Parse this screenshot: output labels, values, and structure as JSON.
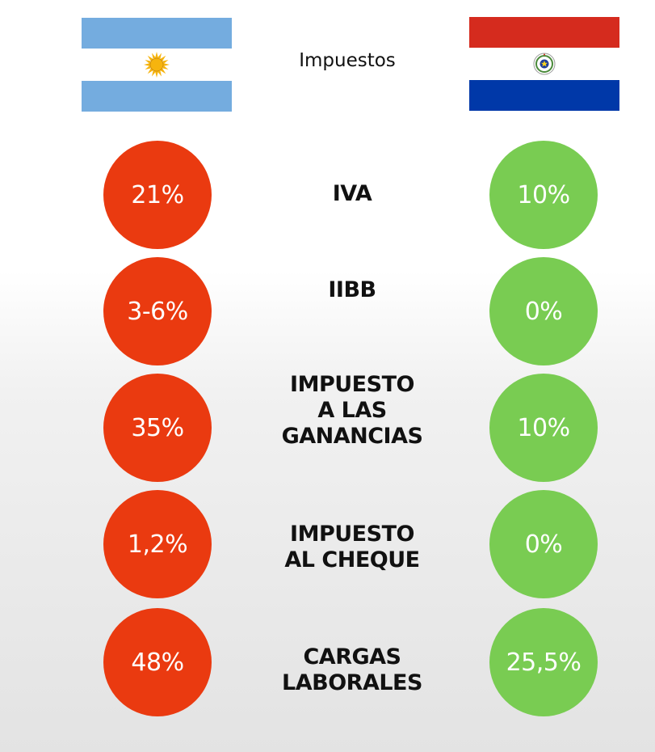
{
  "title": "Impuestos",
  "colors": {
    "argentina_color": "#ea3a10",
    "paraguay_color": "#79cc52",
    "argentina_flag_blue": "#74acdf",
    "argentina_sun": "#f6b40e",
    "paraguay_red": "#d52b1e",
    "paraguay_blue": "#0038a8"
  },
  "flags": {
    "left_icon": "argentina-flag-icon",
    "right_icon": "paraguay-flag-icon"
  },
  "rows": [
    {
      "label_lines": [
        "IVA"
      ],
      "argentina": "21%",
      "paraguay": "10%"
    },
    {
      "label_lines": [
        "IIBB"
      ],
      "argentina": "3-6%",
      "paraguay": "0%"
    },
    {
      "label_lines": [
        "IMPUESTO",
        "A LAS",
        "GANANCIAS"
      ],
      "argentina": "35%",
      "paraguay": "10%"
    },
    {
      "label_lines": [
        "IMPUESTO",
        "AL CHEQUE"
      ],
      "argentina": "1,2%",
      "paraguay": "0%"
    },
    {
      "label_lines": [
        "CARGAS",
        "LABORALES"
      ],
      "argentina": "48%",
      "paraguay": "25,5%"
    }
  ]
}
